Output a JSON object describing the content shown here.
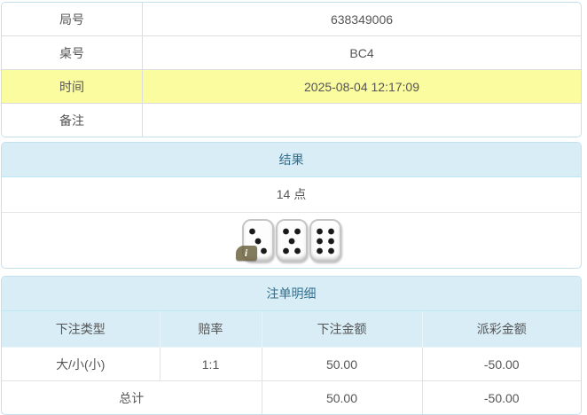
{
  "colors": {
    "accent_blue": "#31708f",
    "header_bg": "#d9edf7",
    "panel_border": "#bce8f1",
    "highlight_yellow": "#fbfb9f",
    "negative_red": "#ee2222",
    "text": "#555555"
  },
  "info_table": {
    "rows": [
      {
        "label": "局号",
        "value": "638349006"
      },
      {
        "label": "桌号",
        "value": "BC4"
      },
      {
        "label": "时间",
        "value": "2025-08-04 12:17:09",
        "highlight": true
      },
      {
        "label": "备注",
        "value": ""
      }
    ]
  },
  "result_panel": {
    "title": "结果",
    "points": "14 点",
    "dice": [
      3,
      5,
      6
    ],
    "info_badge": "i"
  },
  "bets_panel": {
    "title": "注单明细",
    "columns": [
      "下注类型",
      "赔率",
      "下注金额",
      "派彩金额"
    ],
    "rows": [
      {
        "type": "大/小(小)",
        "odds": "1:1",
        "amount": "50.00",
        "payout": "-50.00"
      }
    ],
    "total": {
      "label": "总计",
      "amount": "50.00",
      "payout": "-50.00"
    }
  }
}
